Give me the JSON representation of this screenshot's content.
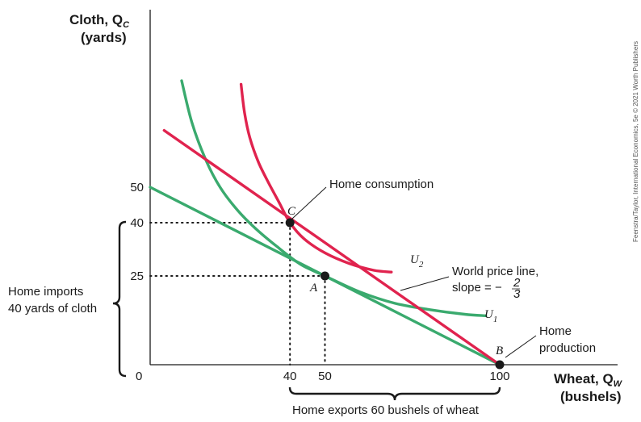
{
  "chart_data": {
    "type": "line",
    "title": "",
    "y_axis": {
      "label_main": "Cloth, Q",
      "label_sub": "C",
      "label_unit": "(yards)"
    },
    "x_axis": {
      "label_main": "Wheat, Q",
      "label_sub": "W",
      "label_unit": "(bushels)"
    },
    "origin_label": "0",
    "xlim": [
      0,
      104
    ],
    "ylim": [
      0,
      102
    ],
    "x_ticks": [
      40,
      50,
      100
    ],
    "y_ticks": [
      25,
      40,
      50
    ],
    "lines": [
      {
        "name": "home-price-line",
        "color": "#3aaa6e",
        "points": [
          [
            0,
            50
          ],
          [
            100,
            0
          ]
        ]
      },
      {
        "name": "world-price-line",
        "color": "#e0234e",
        "points": [
          [
            4,
            66
          ],
          [
            100,
            0
          ]
        ]
      }
    ],
    "curves": [
      {
        "name": "U1",
        "label": "U",
        "sub": "1",
        "color": "#3aaa6e",
        "points": [
          [
            9,
            80
          ],
          [
            12,
            68
          ],
          [
            16,
            57.5
          ],
          [
            20,
            50
          ],
          [
            25,
            43.5
          ],
          [
            30,
            38.5
          ],
          [
            36,
            33.5
          ],
          [
            43,
            28.3
          ],
          [
            50,
            25
          ],
          [
            60,
            20.5
          ],
          [
            70,
            17.3
          ],
          [
            80,
            15.5
          ],
          [
            90,
            14.2
          ],
          [
            96,
            13.8
          ]
        ]
      },
      {
        "name": "U2",
        "label": "U",
        "sub": "2",
        "color": "#e0234e",
        "points": [
          [
            26,
            79
          ],
          [
            27,
            71
          ],
          [
            28.5,
            64
          ],
          [
            31,
            57
          ],
          [
            34,
            51
          ],
          [
            37,
            45.5
          ],
          [
            40,
            40
          ],
          [
            44,
            35.5
          ],
          [
            50,
            31.5
          ],
          [
            57,
            28.5
          ],
          [
            64,
            26.6
          ],
          [
            69,
            26.1
          ]
        ]
      }
    ],
    "points": [
      {
        "name": "C",
        "x": 40,
        "y": 40,
        "label": "C"
      },
      {
        "name": "A",
        "x": 50,
        "y": 25,
        "label": "A"
      },
      {
        "name": "B",
        "x": 100,
        "y": 0,
        "label": "B"
      }
    ],
    "guides": [
      {
        "from": [
          0,
          40
        ],
        "to": [
          40,
          40
        ]
      },
      {
        "from": [
          40,
          40
        ],
        "to": [
          40,
          0
        ]
      },
      {
        "from": [
          0,
          25
        ],
        "to": [
          50,
          25
        ]
      },
      {
        "from": [
          50,
          25
        ],
        "to": [
          50,
          0
        ]
      }
    ],
    "annotations": {
      "home_consumption": "Home consumption",
      "world_price_line_1": "World price line,",
      "world_price_line_2": "slope = −",
      "slope_num": "2",
      "slope_den": "3",
      "home_production_1": "Home",
      "home_production_2": "production",
      "imports_1": "Home imports",
      "imports_2": "40 yards of cloth",
      "exports": "Home exports 60 bushels of wheat"
    },
    "grid": false,
    "legend": "none"
  },
  "credit": "Feenstra/Taylor, International Economics, 5e © 2021 Worth Publishers",
  "colors": {
    "green": "#3aaa6e",
    "red": "#e0234e",
    "axis": "#1a1a1a"
  }
}
